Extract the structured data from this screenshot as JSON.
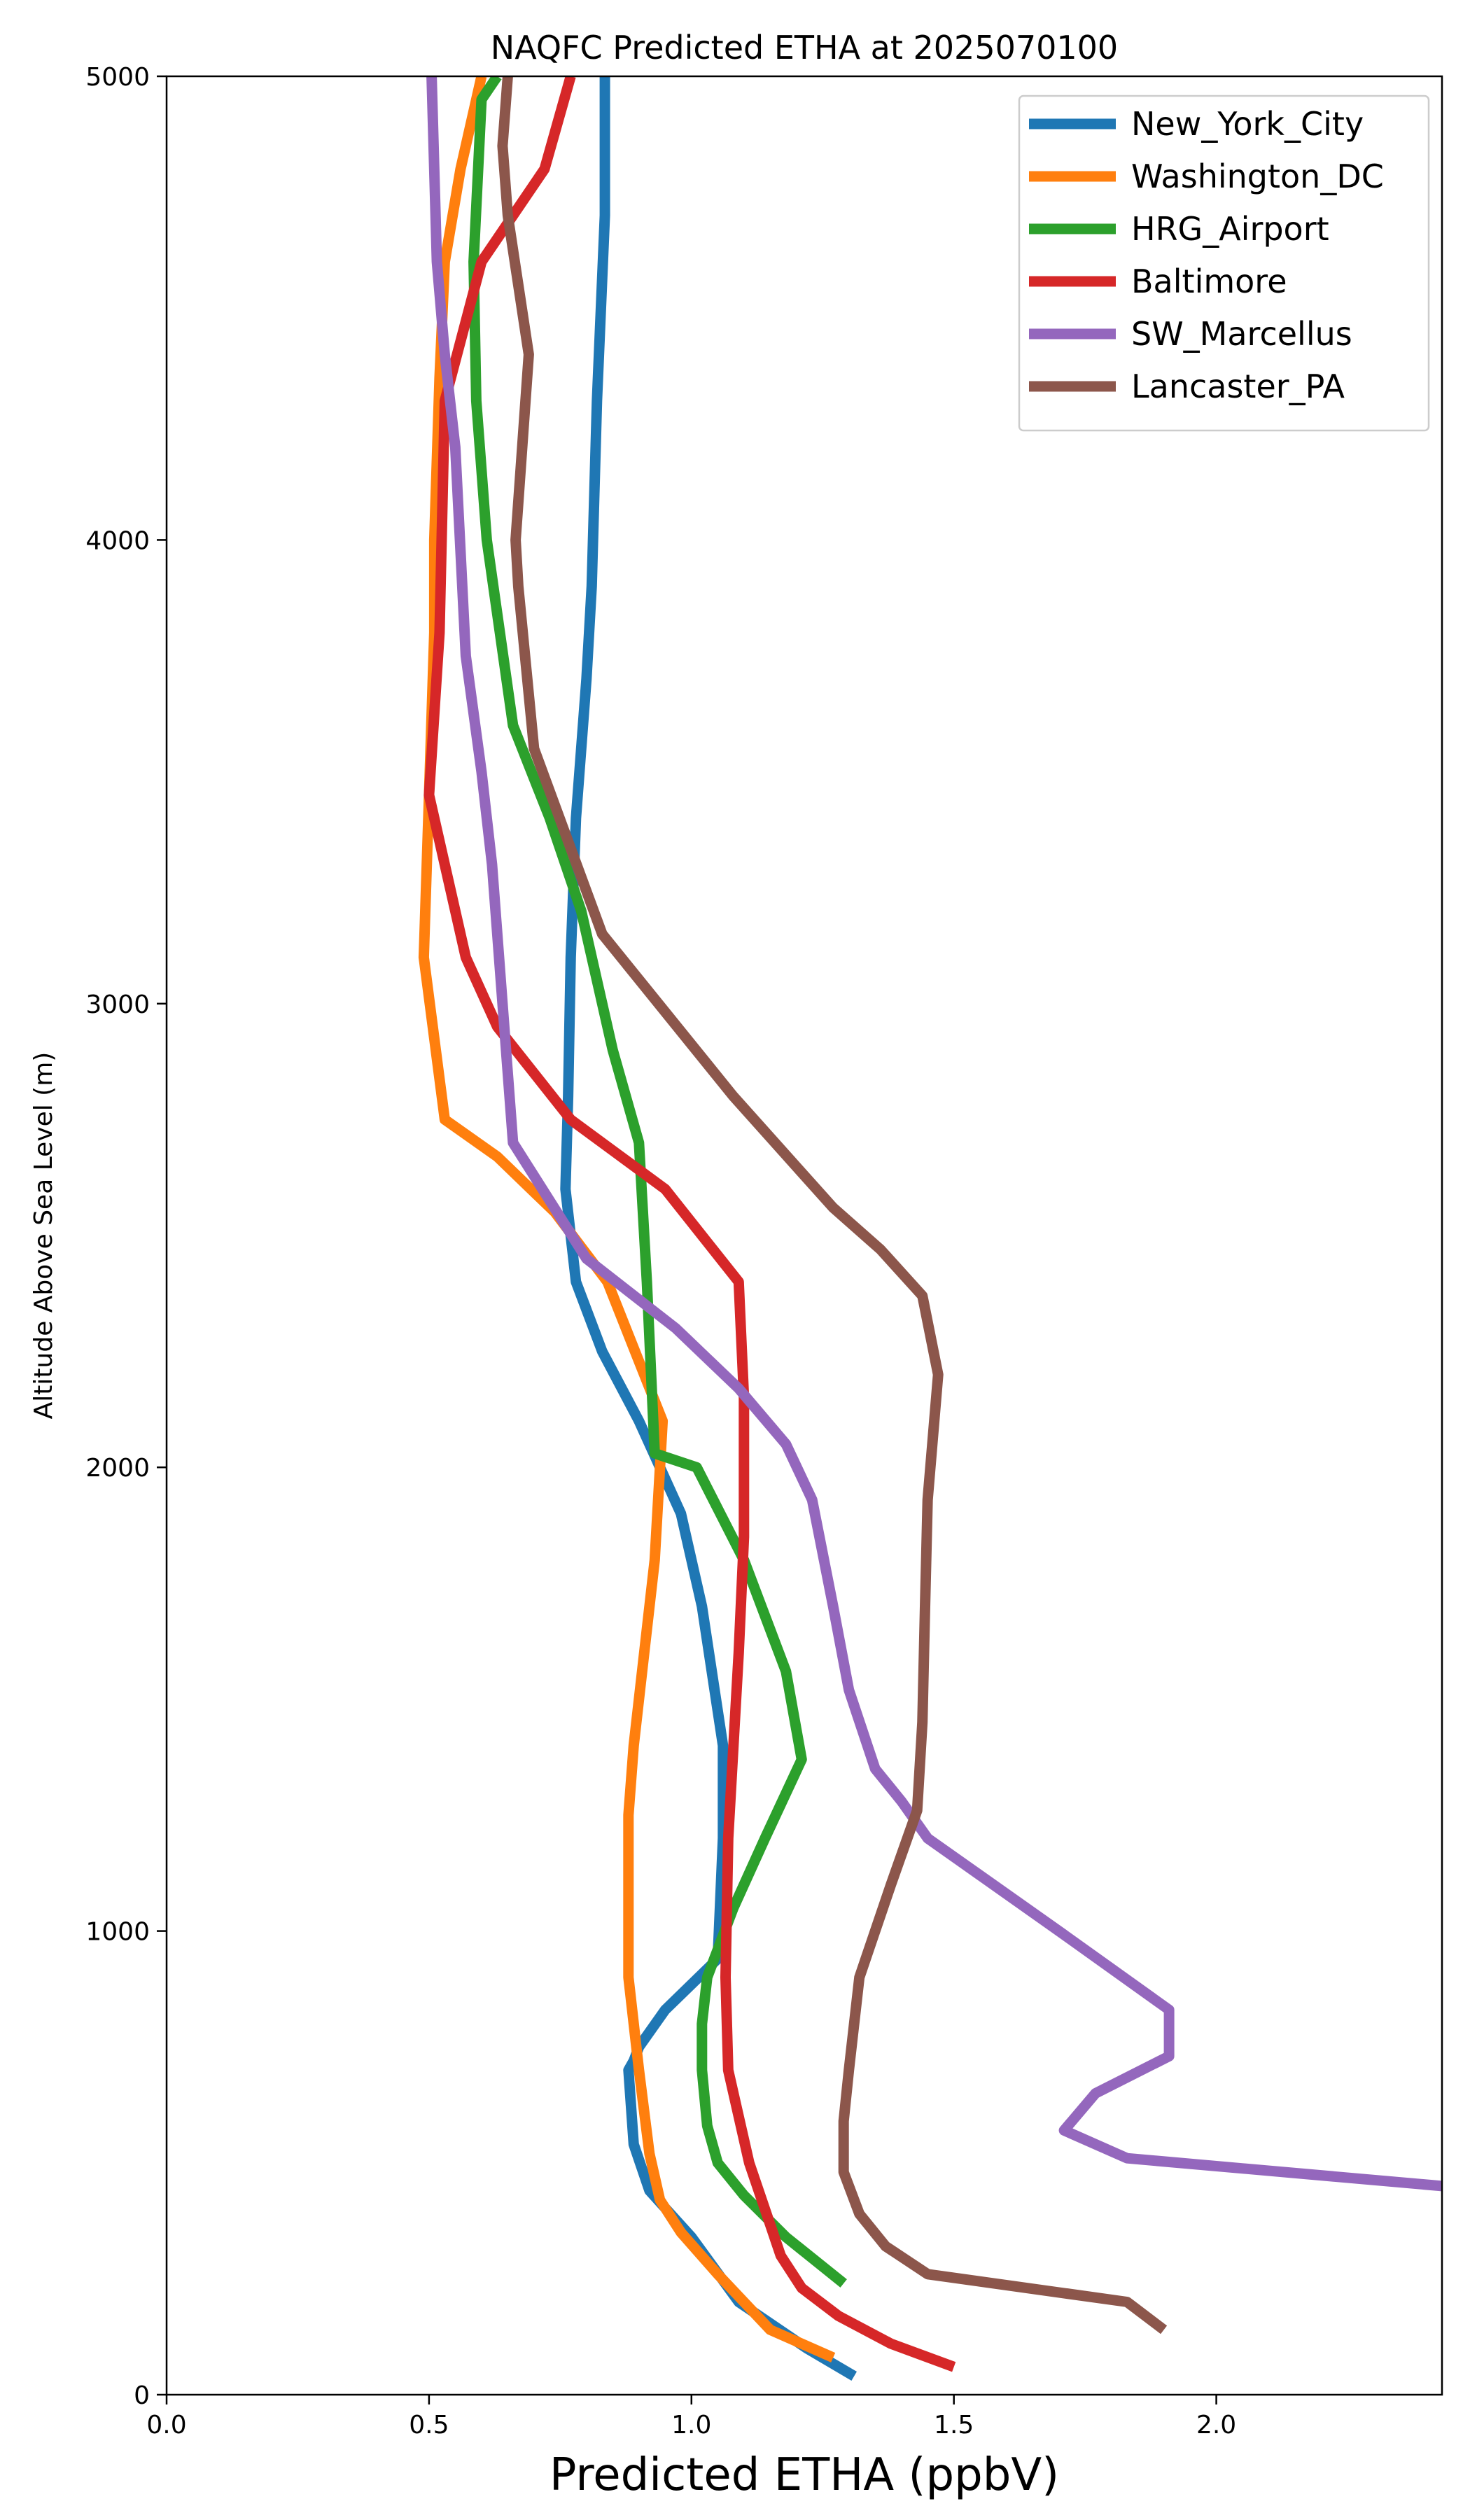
{
  "chart_data": {
    "type": "line",
    "title": "NAQFC Predicted ETHA at 2025070100",
    "xlabel": "Predicted ETHA (ppbV)",
    "ylabel": "Altitude Above Sea Level (m)",
    "xlim": [
      0.0,
      2.43
    ],
    "ylim": [
      0,
      5000
    ],
    "xticks": [
      0.0,
      0.5,
      1.0,
      1.5,
      2.0
    ],
    "xtick_labels": [
      "0.0",
      "0.5",
      "1.0",
      "1.5",
      "2.0"
    ],
    "yticks": [
      0,
      1000,
      2000,
      3000,
      4000,
      5000
    ],
    "ytick_labels": [
      "0",
      "1000",
      "2000",
      "3000",
      "4000",
      "5000"
    ],
    "grid": false,
    "legend_position": "top-right",
    "series": [
      {
        "name": "New_York_City",
        "color": "#1f77b4",
        "x": [
          1.31,
          1.22,
          1.09,
          1.0,
          0.92,
          0.89,
          0.88,
          0.89,
          0.9,
          0.95,
          1.05,
          1.06,
          1.06,
          1.02,
          0.98,
          0.9,
          0.83,
          0.78,
          0.76,
          0.765,
          0.77,
          0.78,
          0.8,
          0.81,
          0.82,
          0.835,
          0.835
        ],
        "y": [
          40,
          100,
          200,
          340,
          440,
          540,
          700,
          720,
          750,
          830,
          940,
          1200,
          1400,
          1700,
          1900,
          2100,
          2250,
          2400,
          2600,
          2800,
          3100,
          3400,
          3700,
          3900,
          4300,
          4700,
          5000
        ]
      },
      {
        "name": "Washington_DC",
        "color": "#ff7f0e",
        "x": [
          1.27,
          1.15,
          1.05,
          0.98,
          0.94,
          0.92,
          0.9,
          0.88,
          0.88,
          0.88,
          0.89,
          0.91,
          0.93,
          0.945,
          0.91,
          0.84,
          0.74,
          0.63,
          0.53,
          0.49,
          0.5,
          0.51,
          0.51,
          0.52,
          0.53,
          0.56,
          0.6
        ],
        "y": [
          80,
          140,
          260,
          350,
          420,
          520,
          700,
          900,
          1050,
          1250,
          1400,
          1600,
          1800,
          2100,
          2200,
          2400,
          2550,
          2670,
          2750,
          3100,
          3450,
          3800,
          4000,
          4350,
          4600,
          4800,
          5000
        ]
      },
      {
        "name": "HRG_Airport",
        "color": "#2ca02c",
        "x": [
          1.29,
          1.18,
          1.1,
          1.05,
          1.03,
          1.02,
          1.02,
          1.03,
          1.08,
          1.14,
          1.21,
          1.18,
          1.1,
          1.01,
          0.93,
          0.915,
          0.9,
          0.85,
          0.79,
          0.73,
          0.66,
          0.61,
          0.59,
          0.585,
          0.6,
          0.63
        ],
        "y": [
          240,
          340,
          430,
          500,
          580,
          700,
          800,
          900,
          1050,
          1200,
          1370,
          1560,
          1800,
          2000,
          2030,
          2400,
          2700,
          2900,
          3200,
          3400,
          3600,
          4000,
          4300,
          4600,
          4950,
          5000
        ]
      },
      {
        "name": "Baltimore",
        "color": "#d62728",
        "x": [
          1.5,
          1.38,
          1.28,
          1.21,
          1.17,
          1.14,
          1.11,
          1.09,
          1.07,
          1.065,
          1.07,
          1.08,
          1.09,
          1.1,
          1.1,
          1.1,
          1.09,
          0.95,
          0.77,
          0.63,
          0.57,
          0.5,
          0.52,
          0.53,
          0.6,
          0.72,
          0.77
        ],
        "y": [
          60,
          110,
          170,
          230,
          300,
          400,
          500,
          600,
          700,
          900,
          1200,
          1400,
          1600,
          1850,
          2000,
          2150,
          2400,
          2600,
          2750,
          2950,
          3100,
          3450,
          3800,
          4300,
          4600,
          4800,
          5000
        ]
      },
      {
        "name": "SW_Marcellus",
        "color": "#9467bd",
        "x": [
          2.43,
          1.83,
          1.71,
          1.77,
          1.91,
          1.91,
          1.7,
          1.45,
          1.4,
          1.35,
          1.3,
          1.27,
          1.23,
          1.18,
          1.09,
          0.97,
          0.8,
          0.66,
          0.64,
          0.62,
          0.6,
          0.57,
          0.55,
          0.53,
          0.515,
          0.505
        ],
        "y": [
          450,
          510,
          570,
          650,
          730,
          830,
          1000,
          1200,
          1280,
          1350,
          1520,
          1700,
          1930,
          2050,
          2170,
          2300,
          2450,
          2700,
          3000,
          3300,
          3500,
          3750,
          4200,
          4400,
          4600,
          5000
        ]
      },
      {
        "name": "Lancaster_PA",
        "color": "#8c564b",
        "x": [
          1.9,
          1.83,
          1.45,
          1.37,
          1.32,
          1.29,
          1.29,
          1.3,
          1.32,
          1.38,
          1.43,
          1.44,
          1.445,
          1.45,
          1.47,
          1.44,
          1.36,
          1.27,
          1.08,
          0.83,
          0.7,
          0.67,
          0.665,
          0.69,
          0.65,
          0.64,
          0.65
        ],
        "y": [
          140,
          200,
          260,
          320,
          390,
          480,
          590,
          700,
          900,
          1100,
          1260,
          1450,
          1700,
          1930,
          2200,
          2370,
          2470,
          2560,
          2800,
          3150,
          3550,
          3900,
          4000,
          4400,
          4700,
          4850,
          5000
        ]
      }
    ]
  }
}
